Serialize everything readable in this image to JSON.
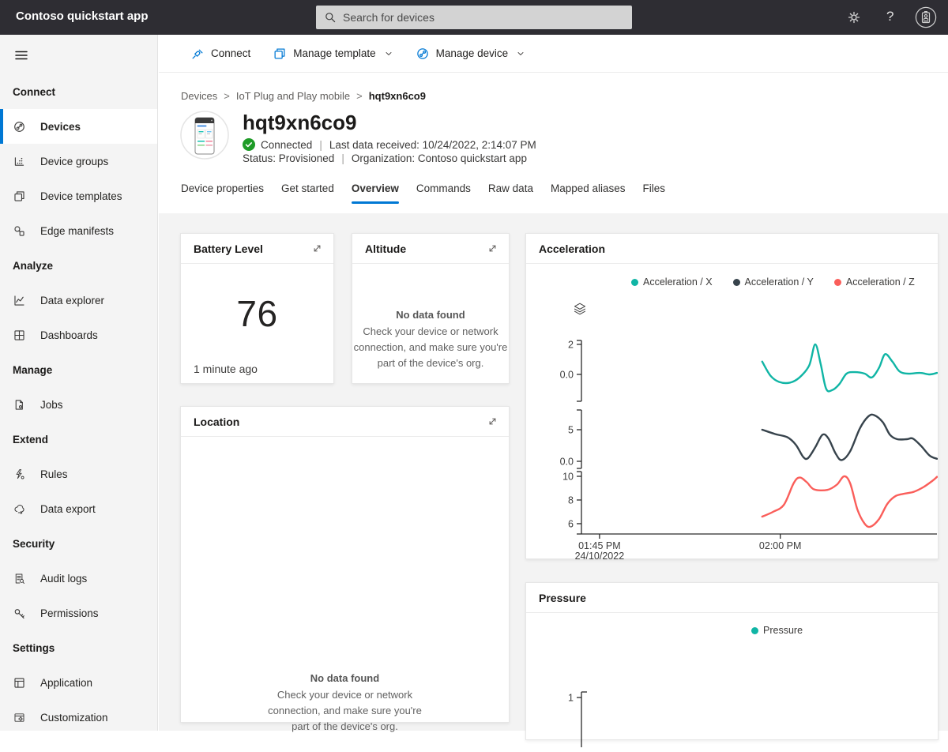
{
  "app": {
    "title": "Contoso quickstart app"
  },
  "topbar": {
    "search_placeholder": "Search for devices",
    "help_label": "?"
  },
  "sidebar": {
    "sections": [
      {
        "label": "Connect",
        "items": [
          {
            "label": "Devices",
            "icon": "devices-icon",
            "selected": true
          },
          {
            "label": "Device groups",
            "icon": "device-groups-icon"
          },
          {
            "label": "Device templates",
            "icon": "device-templates-icon"
          },
          {
            "label": "Edge manifests",
            "icon": "edge-manifests-icon"
          }
        ]
      },
      {
        "label": "Analyze",
        "items": [
          {
            "label": "Data explorer",
            "icon": "data-explorer-icon"
          },
          {
            "label": "Dashboards",
            "icon": "dashboards-icon"
          }
        ]
      },
      {
        "label": "Manage",
        "items": [
          {
            "label": "Jobs",
            "icon": "jobs-icon"
          }
        ]
      },
      {
        "label": "Extend",
        "items": [
          {
            "label": "Rules",
            "icon": "rules-icon"
          },
          {
            "label": "Data export",
            "icon": "data-export-icon"
          }
        ]
      },
      {
        "label": "Security",
        "items": [
          {
            "label": "Audit logs",
            "icon": "audit-logs-icon"
          },
          {
            "label": "Permissions",
            "icon": "permissions-icon"
          }
        ]
      },
      {
        "label": "Settings",
        "items": [
          {
            "label": "Application",
            "icon": "application-icon"
          },
          {
            "label": "Customization",
            "icon": "customization-icon"
          }
        ]
      }
    ]
  },
  "toolbar": {
    "actions": [
      {
        "label": "Connect",
        "icon": "connect-icon",
        "dropdown": false
      },
      {
        "label": "Manage template",
        "icon": "manage-template-icon",
        "dropdown": true
      },
      {
        "label": "Manage device",
        "icon": "manage-device-icon",
        "dropdown": true
      }
    ]
  },
  "breadcrumb": {
    "items": [
      "Devices",
      "IoT Plug and Play mobile",
      "hqt9xn6co9"
    ],
    "separator": ">"
  },
  "device": {
    "name": "hqt9xn6co9",
    "connection_status": "Connected",
    "last_data": "Last data received: 10/24/2022, 2:14:07 PM",
    "status": "Status: Provisioned",
    "organization": "Organization: Contoso quickstart app",
    "divider": "|"
  },
  "tabs": {
    "items": [
      "Device properties",
      "Get started",
      "Overview",
      "Commands",
      "Raw data",
      "Mapped aliases",
      "Files"
    ],
    "active": "Overview"
  },
  "tiles": {
    "battery": {
      "title": "Battery Level",
      "value": "76",
      "updated": "1 minute ago"
    },
    "altitude": {
      "title": "Altitude",
      "empty_title": "No data found",
      "empty_message": "Check your device or network connection, and make sure you're part of the device's org."
    },
    "location": {
      "title": "Location",
      "empty_title": "No data found",
      "empty_message": "Check your device or network connection, and make sure you're part of the device's org."
    }
  },
  "colors": {
    "accent": "#0078d4",
    "connected_green": "#1e9b27",
    "series_x": "#10b5a5",
    "series_y": "#37434c",
    "series_z": "#fa5e5a"
  },
  "chart_data": [
    {
      "type": "line",
      "title": "Acceleration",
      "legend_position": "top",
      "legend": [
        {
          "label": "Acceleration / X",
          "color": "#10b5a5"
        },
        {
          "label": "Acceleration / Y",
          "color": "#37434c"
        },
        {
          "label": "Acceleration / Z",
          "color": "#fa5e5a"
        }
      ],
      "x_unit": "minutes after 01:45 PM 24/10/2022",
      "x_axis": {
        "range_minutes": [
          -1.5,
          28
        ],
        "ticks": [
          {
            "t": 0,
            "label": "01:45 PM",
            "sublabel": "24/10/2022"
          },
          {
            "t": 15,
            "label": "02:00 PM"
          }
        ]
      },
      "panels": [
        {
          "series": "Acceleration / X",
          "color": "#10b5a5",
          "value_range": [
            -1.79,
            2.26
          ],
          "ticks": [
            {
              "v": 2,
              "label": "2"
            },
            {
              "v": 0,
              "label": "0.0"
            }
          ],
          "points": [
            [
              13.5,
              0.85
            ],
            [
              14.2,
              -0.1
            ],
            [
              14.9,
              -0.5
            ],
            [
              15.8,
              -0.55
            ],
            [
              16.6,
              -0.2
            ],
            [
              17.4,
              0.6
            ],
            [
              17.9,
              2.0
            ],
            [
              18.35,
              0.7
            ],
            [
              18.8,
              -0.95
            ],
            [
              19.3,
              -1.05
            ],
            [
              19.9,
              -0.65
            ],
            [
              20.5,
              0.05
            ],
            [
              21.2,
              0.15
            ],
            [
              22.0,
              0.05
            ],
            [
              22.6,
              -0.2
            ],
            [
              23.2,
              0.45
            ],
            [
              23.7,
              1.35
            ],
            [
              24.3,
              0.85
            ],
            [
              24.9,
              0.2
            ],
            [
              25.6,
              0.05
            ],
            [
              26.6,
              0.1
            ],
            [
              27.4,
              0.0
            ],
            [
              28.0,
              0.1
            ]
          ]
        },
        {
          "series": "Acceleration / Y",
          "color": "#37434c",
          "value_range": [
            -1.125,
            8.125
          ],
          "ticks": [
            {
              "v": 5,
              "label": "5"
            },
            {
              "v": 0,
              "label": "0.0"
            }
          ],
          "points": [
            [
              13.5,
              5.0
            ],
            [
              14.6,
              4.3
            ],
            [
              15.6,
              3.8
            ],
            [
              16.3,
              2.6
            ],
            [
              16.9,
              0.7
            ],
            [
              17.3,
              0.5
            ],
            [
              17.9,
              2.2
            ],
            [
              18.5,
              4.2
            ],
            [
              19.0,
              3.6
            ],
            [
              19.6,
              1.2
            ],
            [
              20.1,
              0.2
            ],
            [
              20.8,
              1.6
            ],
            [
              21.6,
              5.2
            ],
            [
              22.3,
              7.1
            ],
            [
              22.8,
              7.3
            ],
            [
              23.5,
              6.2
            ],
            [
              24.1,
              4.2
            ],
            [
              24.7,
              3.5
            ],
            [
              25.5,
              3.5
            ],
            [
              26.0,
              3.6
            ],
            [
              26.7,
              2.4
            ],
            [
              27.4,
              0.9
            ],
            [
              28.0,
              0.4
            ]
          ]
        },
        {
          "series": "Acceleration / Z",
          "color": "#fa5e5a",
          "value_range": [
            5.13,
            10.4
          ],
          "ticks": [
            {
              "v": 10,
              "label": "10"
            },
            {
              "v": 8,
              "label": "8"
            },
            {
              "v": 6,
              "label": "6"
            }
          ],
          "points": [
            [
              13.5,
              6.6
            ],
            [
              14.4,
              7.0
            ],
            [
              15.3,
              7.6
            ],
            [
              16.1,
              9.4
            ],
            [
              16.6,
              9.9
            ],
            [
              17.2,
              9.5
            ],
            [
              17.8,
              8.9
            ],
            [
              18.9,
              8.85
            ],
            [
              19.7,
              9.3
            ],
            [
              20.3,
              10.0
            ],
            [
              20.8,
              9.4
            ],
            [
              21.4,
              7.2
            ],
            [
              22.0,
              6.0
            ],
            [
              22.5,
              5.75
            ],
            [
              23.2,
              6.4
            ],
            [
              23.9,
              7.7
            ],
            [
              24.6,
              8.35
            ],
            [
              25.4,
              8.55
            ],
            [
              26.1,
              8.7
            ],
            [
              26.9,
              9.1
            ],
            [
              27.6,
              9.6
            ],
            [
              28.0,
              9.95
            ]
          ]
        }
      ]
    },
    {
      "type": "line",
      "title": "Pressure",
      "legend_position": "top",
      "legend": [
        {
          "label": "Pressure",
          "color": "#10b5a5"
        }
      ],
      "y_axis_ticks": [
        {
          "v": 1,
          "label": "1"
        }
      ],
      "series": []
    }
  ]
}
